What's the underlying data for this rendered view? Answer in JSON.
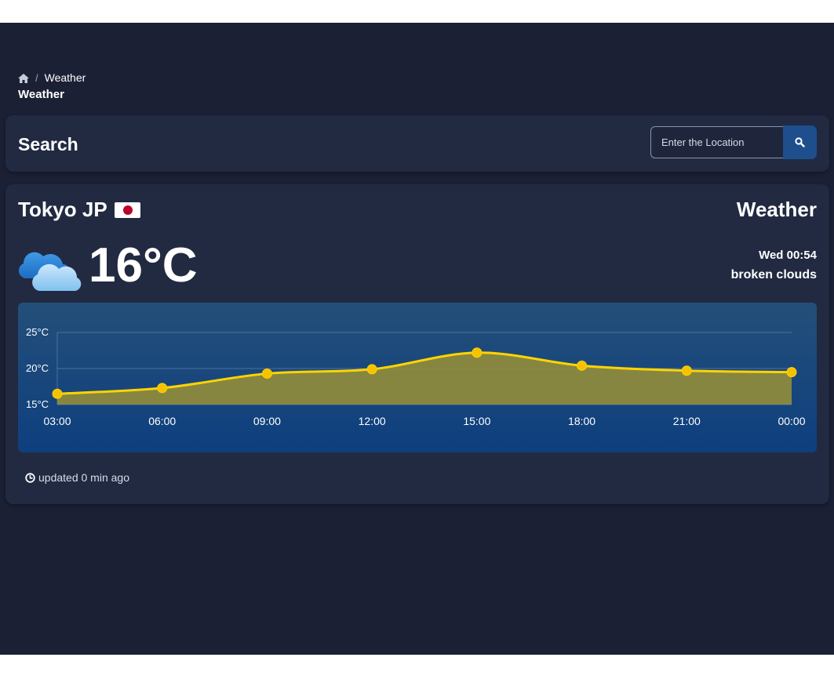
{
  "breadcrumb": {
    "home_icon": "home-icon",
    "separator": "/",
    "current": "Weather"
  },
  "page_title": "Weather",
  "search": {
    "title": "Search",
    "placeholder": "Enter the Location",
    "value": "",
    "button_icon": "search-icon"
  },
  "weather": {
    "city": "Tokyo JP",
    "flag": "japan-flag-icon",
    "heading": "Weather",
    "condition_icon": "cloud-icon",
    "temperature": "16°C",
    "datetime": "Wed 00:54",
    "description": "broken clouds",
    "updated": "updated 0 min ago",
    "updated_icon": "clock-icon"
  },
  "colors": {
    "background": "#1b2035",
    "card": "#222a42",
    "accent": "#1e4f8c",
    "line": "#ffd400",
    "fill": "#8d8a3d"
  },
  "chart_data": {
    "type": "area",
    "categories": [
      "03:00",
      "06:00",
      "09:00",
      "12:00",
      "15:00",
      "18:00",
      "21:00",
      "00:00"
    ],
    "series": [
      {
        "values": [
          16.5,
          17.3,
          19.3,
          19.9,
          22.2,
          20.4,
          19.7,
          19.5
        ]
      }
    ],
    "yticks": [
      "15°C",
      "20°C",
      "25°C"
    ],
    "ytick_values": [
      15,
      20,
      25
    ],
    "ylim": [
      15,
      25
    ],
    "grid": true,
    "legend": "none"
  }
}
